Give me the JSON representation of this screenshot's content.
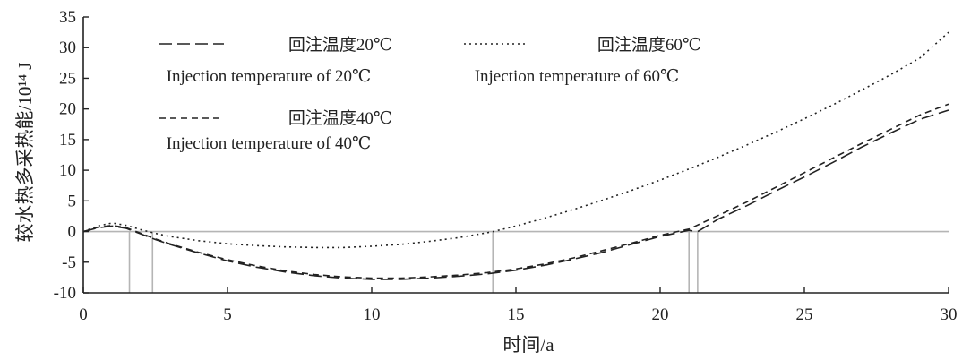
{
  "chart_data": {
    "type": "line",
    "xlabel": "时间/a",
    "ylabel": "较水热多采热能/10¹⁴ J",
    "xlim": [
      0,
      30
    ],
    "ylim": [
      -10,
      35
    ],
    "xticks": [
      0,
      5,
      10,
      15,
      20,
      25,
      30
    ],
    "yticks": [
      -10,
      -5,
      0,
      5,
      10,
      15,
      20,
      25,
      30,
      35
    ],
    "grid": false,
    "legend_position": "top-left",
    "series": [
      {
        "name": "回注温度20℃ Injection temperature of 20℃",
        "name_cn": "回注温度20℃",
        "name_en": "Injection temperature of 20℃",
        "style": "long-dash",
        "color": "#222222",
        "x": [
          0,
          0.5,
          1,
          1.5,
          2,
          2.5,
          3,
          4,
          5,
          6,
          7,
          8,
          9,
          10,
          11,
          12,
          13,
          14,
          15,
          16,
          17,
          18,
          19,
          20,
          21,
          21.3,
          22,
          23,
          24,
          25,
          26,
          27,
          28,
          29,
          30
        ],
        "y": [
          0,
          0.6,
          0.9,
          0.5,
          -0.4,
          -1.3,
          -2.1,
          -3.5,
          -4.8,
          -5.8,
          -6.6,
          -7.2,
          -7.6,
          -7.8,
          -7.8,
          -7.6,
          -7.3,
          -6.9,
          -6.3,
          -5.5,
          -4.5,
          -3.4,
          -2.1,
          -0.8,
          0.2,
          0,
          2.0,
          4.2,
          6.6,
          8.9,
          11.3,
          13.8,
          16.1,
          18.3,
          19.8
        ]
      },
      {
        "name": "回注温度40℃ Injection temperature of 40℃",
        "name_cn": "回注温度40℃",
        "name_en": "Injection temperature of 40℃",
        "style": "short-dash",
        "color": "#222222",
        "x": [
          0,
          0.5,
          1,
          1.5,
          2,
          2.5,
          3,
          4,
          5,
          6,
          7,
          8,
          9,
          10,
          11,
          12,
          13,
          14,
          15,
          16,
          17,
          18,
          19,
          20,
          21,
          22,
          23,
          24,
          25,
          26,
          27,
          28,
          29,
          30
        ],
        "y": [
          0,
          0.7,
          1.0,
          0.6,
          -0.3,
          -1.2,
          -2.0,
          -3.4,
          -4.6,
          -5.6,
          -6.4,
          -7.0,
          -7.4,
          -7.6,
          -7.6,
          -7.4,
          -7.1,
          -6.7,
          -6.1,
          -5.3,
          -4.3,
          -3.1,
          -1.9,
          -0.6,
          0.4,
          2.6,
          4.8,
          7.2,
          9.6,
          12.0,
          14.4,
          16.7,
          19.0,
          20.8
        ]
      },
      {
        "name": "回注温度60℃ Injection temperature of 60℃",
        "name_cn": "回注温度60℃",
        "name_en": "Injection temperature of 60℃",
        "style": "dotted",
        "color": "#222222",
        "x": [
          0,
          0.5,
          1,
          1.5,
          2,
          2.5,
          3,
          4,
          5,
          6,
          7,
          8,
          9,
          10,
          11,
          12,
          13,
          14,
          14.2,
          15,
          16,
          17,
          18,
          19,
          20,
          21,
          22,
          23,
          24,
          25,
          26,
          27,
          28,
          29,
          30
        ],
        "y": [
          0,
          0.9,
          1.4,
          1.0,
          0.3,
          -0.3,
          -0.8,
          -1.5,
          -2.0,
          -2.3,
          -2.5,
          -2.6,
          -2.6,
          -2.4,
          -2.1,
          -1.6,
          -1.0,
          -0.2,
          0,
          0.9,
          2.2,
          3.6,
          5.1,
          6.7,
          8.4,
          10.2,
          12.1,
          14.1,
          16.2,
          18.4,
          20.7,
          23.1,
          25.6,
          28.3,
          32.5
        ]
      }
    ],
    "reference_lines": {
      "horizontal_y": 0,
      "vertical_x": [
        1.6,
        2.4,
        14.2,
        21.0,
        21.3
      ],
      "color": "#b5b5b5"
    },
    "legend": [
      {
        "cn": "回注温度20℃",
        "en": "Injection temperature of 20℃",
        "style": "long-dash"
      },
      {
        "cn": "回注温度60℃",
        "en": "Injection temperature of 60℃",
        "style": "dotted"
      },
      {
        "cn": "回注温度40℃",
        "en": "Injection temperature of 40℃",
        "style": "short-dash"
      }
    ]
  }
}
